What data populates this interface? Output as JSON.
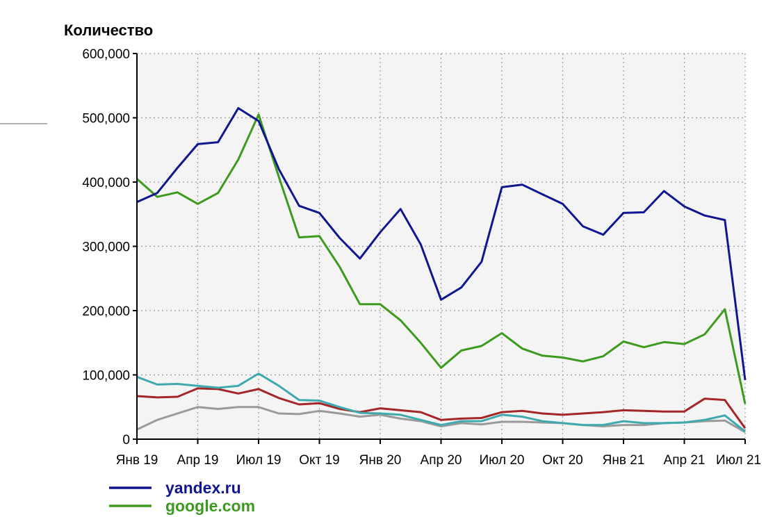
{
  "chart_data": {
    "type": "line",
    "title": "",
    "ylabel": "Количество",
    "xlabel": "",
    "ylim": [
      0,
      600000
    ],
    "yticks": [
      0,
      100000,
      200000,
      300000,
      400000,
      500000,
      600000
    ],
    "ytick_labels": [
      "0",
      "100,000",
      "200,000",
      "300,000",
      "400,000",
      "500,000",
      "600,000"
    ],
    "xticks": [
      "Янв 19",
      "Апр 19",
      "Июл 19",
      "Окт 19",
      "Янв 20",
      "Апр 20",
      "Июл 20",
      "Окт 20",
      "Янв 21",
      "Апр 21",
      "Июл 21"
    ],
    "grid": true,
    "legend": "bottom-left",
    "x": [
      "2019-01",
      "2019-02",
      "2019-03",
      "2019-04",
      "2019-05",
      "2019-06",
      "2019-07",
      "2019-08",
      "2019-09",
      "2019-10",
      "2019-11",
      "2019-12",
      "2020-01",
      "2020-02",
      "2020-03",
      "2020-04",
      "2020-05",
      "2020-06",
      "2020-07",
      "2020-08",
      "2020-09",
      "2020-10",
      "2020-11",
      "2020-12",
      "2021-01",
      "2021-02",
      "2021-03",
      "2021-04",
      "2021-05",
      "2021-06",
      "2021-07"
    ],
    "series": [
      {
        "name": "yandex.ru",
        "color": "#10168f",
        "in_legend": true,
        "values": [
          369000,
          383000,
          422000,
          459000,
          462000,
          515000,
          495000,
          420000,
          363000,
          352000,
          313000,
          281000,
          322000,
          358000,
          303000,
          217000,
          236000,
          276000,
          392000,
          396000,
          381000,
          366000,
          331000,
          318000,
          352000,
          353000,
          386000,
          362000,
          348000,
          341000,
          92000
        ]
      },
      {
        "name": "google.com",
        "color": "#3c9a1e",
        "in_legend": true,
        "values": [
          405000,
          377000,
          384000,
          366000,
          383000,
          435000,
          505000,
          408000,
          314000,
          316000,
          268000,
          210000,
          210000,
          185000,
          150000,
          111000,
          138000,
          145000,
          165000,
          141000,
          130000,
          127000,
          121000,
          129000,
          152000,
          143000,
          151000,
          148000,
          163000,
          202000,
          55000
        ]
      },
      {
        "name": "",
        "color": "#3fa9b0",
        "in_legend": false,
        "values": [
          97000,
          85000,
          86000,
          83000,
          80000,
          83000,
          102000,
          83000,
          61000,
          60000,
          50000,
          41000,
          40000,
          38000,
          30000,
          22000,
          28000,
          28000,
          38000,
          35000,
          28000,
          25000,
          22000,
          22000,
          28000,
          25000,
          25000,
          26000,
          30000,
          37000,
          12000
        ]
      },
      {
        "name": "",
        "color": "#a52626",
        "in_legend": false,
        "values": [
          67000,
          65000,
          66000,
          79000,
          78000,
          71000,
          78000,
          64000,
          54000,
          56000,
          47000,
          42000,
          48000,
          45000,
          42000,
          30000,
          32000,
          33000,
          42000,
          44000,
          40000,
          38000,
          40000,
          42000,
          45000,
          44000,
          43000,
          43000,
          63000,
          61000,
          17000
        ]
      },
      {
        "name": "",
        "color": "#9a9a9a",
        "in_legend": false,
        "values": [
          15000,
          30000,
          40000,
          50000,
          47000,
          50000,
          50000,
          40000,
          39000,
          44000,
          40000,
          35000,
          38000,
          32000,
          28000,
          20000,
          25000,
          23000,
          27000,
          27000,
          26000,
          25000,
          22000,
          20000,
          22000,
          22000,
          25000,
          26000,
          28000,
          29000,
          11000
        ]
      }
    ]
  }
}
